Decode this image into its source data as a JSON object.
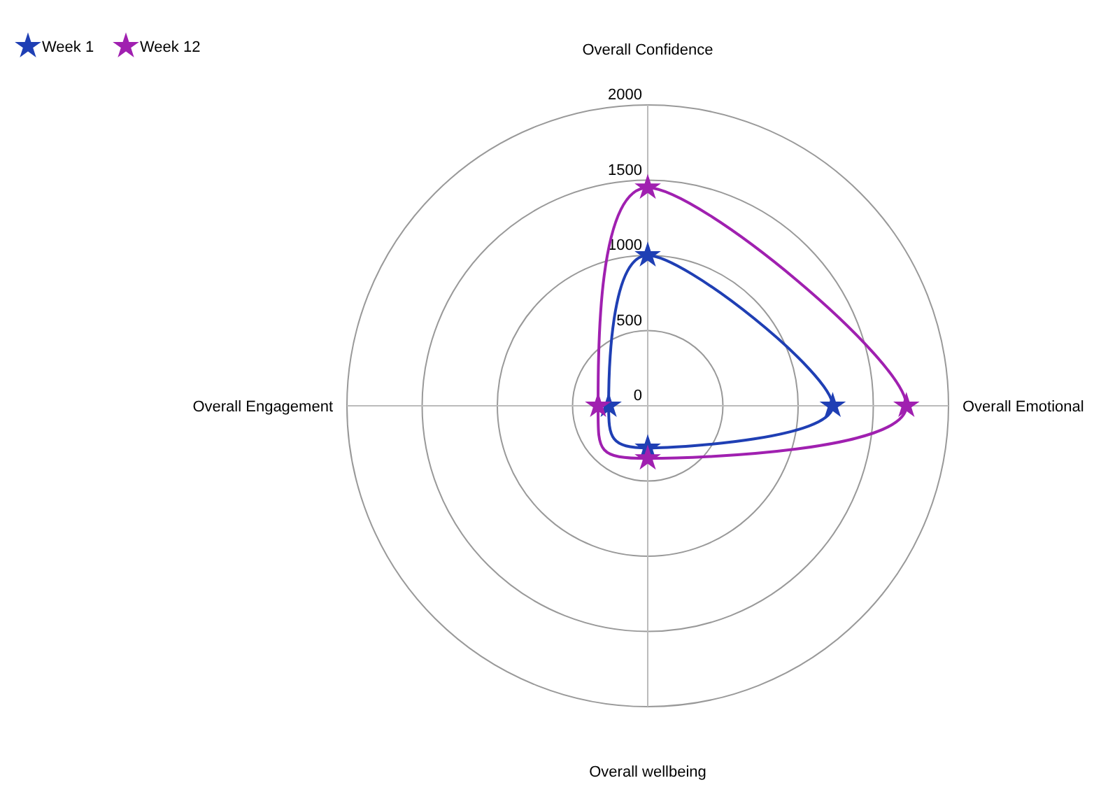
{
  "chart_data": {
    "type": "radar",
    "categories": [
      "Overall Confidence",
      "Overall Emotional",
      "Overall wellbeing",
      "Overall Engagement"
    ],
    "series": [
      {
        "name": "Week 1",
        "color": "#1f3fb4",
        "values": [
          1000,
          1230,
          280,
          260
        ]
      },
      {
        "name": "Week 12",
        "color": "#a020b0",
        "values": [
          1450,
          1720,
          350,
          330
        ]
      }
    ],
    "ylim": [
      0,
      2000
    ],
    "yticks": [
      0,
      500,
      1000,
      1500,
      2000
    ],
    "grid": true,
    "legend": "top left",
    "marker": "star",
    "line_style": "solid"
  }
}
